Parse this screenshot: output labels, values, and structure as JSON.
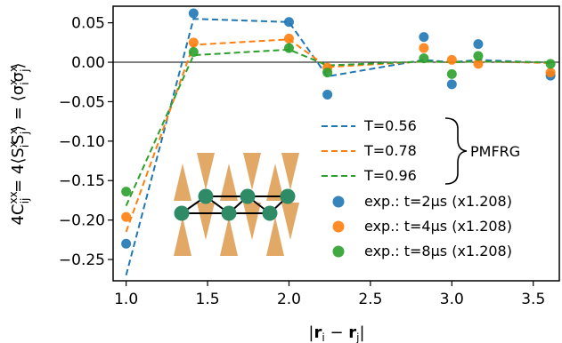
{
  "chart_data": {
    "type": "scatter",
    "xlabel": "|r_i − r_j|",
    "ylabel": "4C_ij^xx = 4⟨S_i^x S_j^x⟩ = ⟨σ_i^x σ_j^x⟩",
    "xlim": [
      0.92,
      3.66
    ],
    "ylim": [
      -0.277,
      0.071
    ],
    "x_ticks": [
      1.0,
      1.5,
      2.0,
      2.5,
      3.0,
      3.5
    ],
    "x_tick_labels": [
      "1.0",
      "1.5",
      "2.0",
      "2.5",
      "3.0",
      "3.5"
    ],
    "y_ticks": [
      0.05,
      0.0,
      -0.05,
      -0.1,
      -0.15,
      -0.2,
      -0.25
    ],
    "y_tick_labels": [
      "0.05",
      "0.00",
      "−0.05",
      "−0.10",
      "−0.15",
      "−0.20",
      "−0.25"
    ],
    "zero_line": true,
    "grid": false,
    "legend_position": "bottom-right",
    "legend_group_label": "PMFRG",
    "x": [
      1.0,
      1.414,
      2.0,
      2.236,
      2.828,
      3.0,
      3.162,
      3.606
    ],
    "series": [
      {
        "name": "T=0.56",
        "kind": "line",
        "style": "dashed",
        "color": "#1f77b4",
        "values": [
          -0.27,
          0.055,
          0.051,
          -0.018,
          0.003,
          0.0,
          0.003,
          -0.001
        ]
      },
      {
        "name": "T=0.78",
        "kind": "line",
        "style": "dashed",
        "color": "#ff7f0e",
        "values": [
          -0.215,
          0.022,
          0.029,
          -0.006,
          0.001,
          0.0,
          0.001,
          -0.001
        ]
      },
      {
        "name": "T=0.96",
        "kind": "line",
        "style": "dashed",
        "color": "#2ca02c",
        "values": [
          -0.182,
          0.009,
          0.016,
          -0.004,
          0.001,
          0.0,
          0.001,
          0.0
        ]
      },
      {
        "name": "exp.: t=2µs (x1.208)",
        "kind": "points",
        "color": "#1f77b4",
        "values": [
          -0.23,
          0.062,
          0.051,
          -0.041,
          0.032,
          -0.028,
          0.023,
          -0.017
        ]
      },
      {
        "name": "exp.: t=4µs (x1.208)",
        "kind": "points",
        "color": "#ff7f0e",
        "values": [
          -0.196,
          0.025,
          0.03,
          -0.007,
          0.018,
          0.003,
          -0.002,
          -0.013
        ]
      },
      {
        "name": "exp.: t=8µs (x1.208)",
        "kind": "points",
        "color": "#2ca02c",
        "values": [
          -0.164,
          0.013,
          0.018,
          -0.013,
          0.005,
          -0.015,
          0.008,
          -0.002
        ]
      }
    ],
    "colors": {
      "blue": "#1f77b4",
      "orange": "#ff7f0e",
      "green": "#2ca02c",
      "triangle": "#e2a865",
      "node": "#2e8b66"
    }
  }
}
